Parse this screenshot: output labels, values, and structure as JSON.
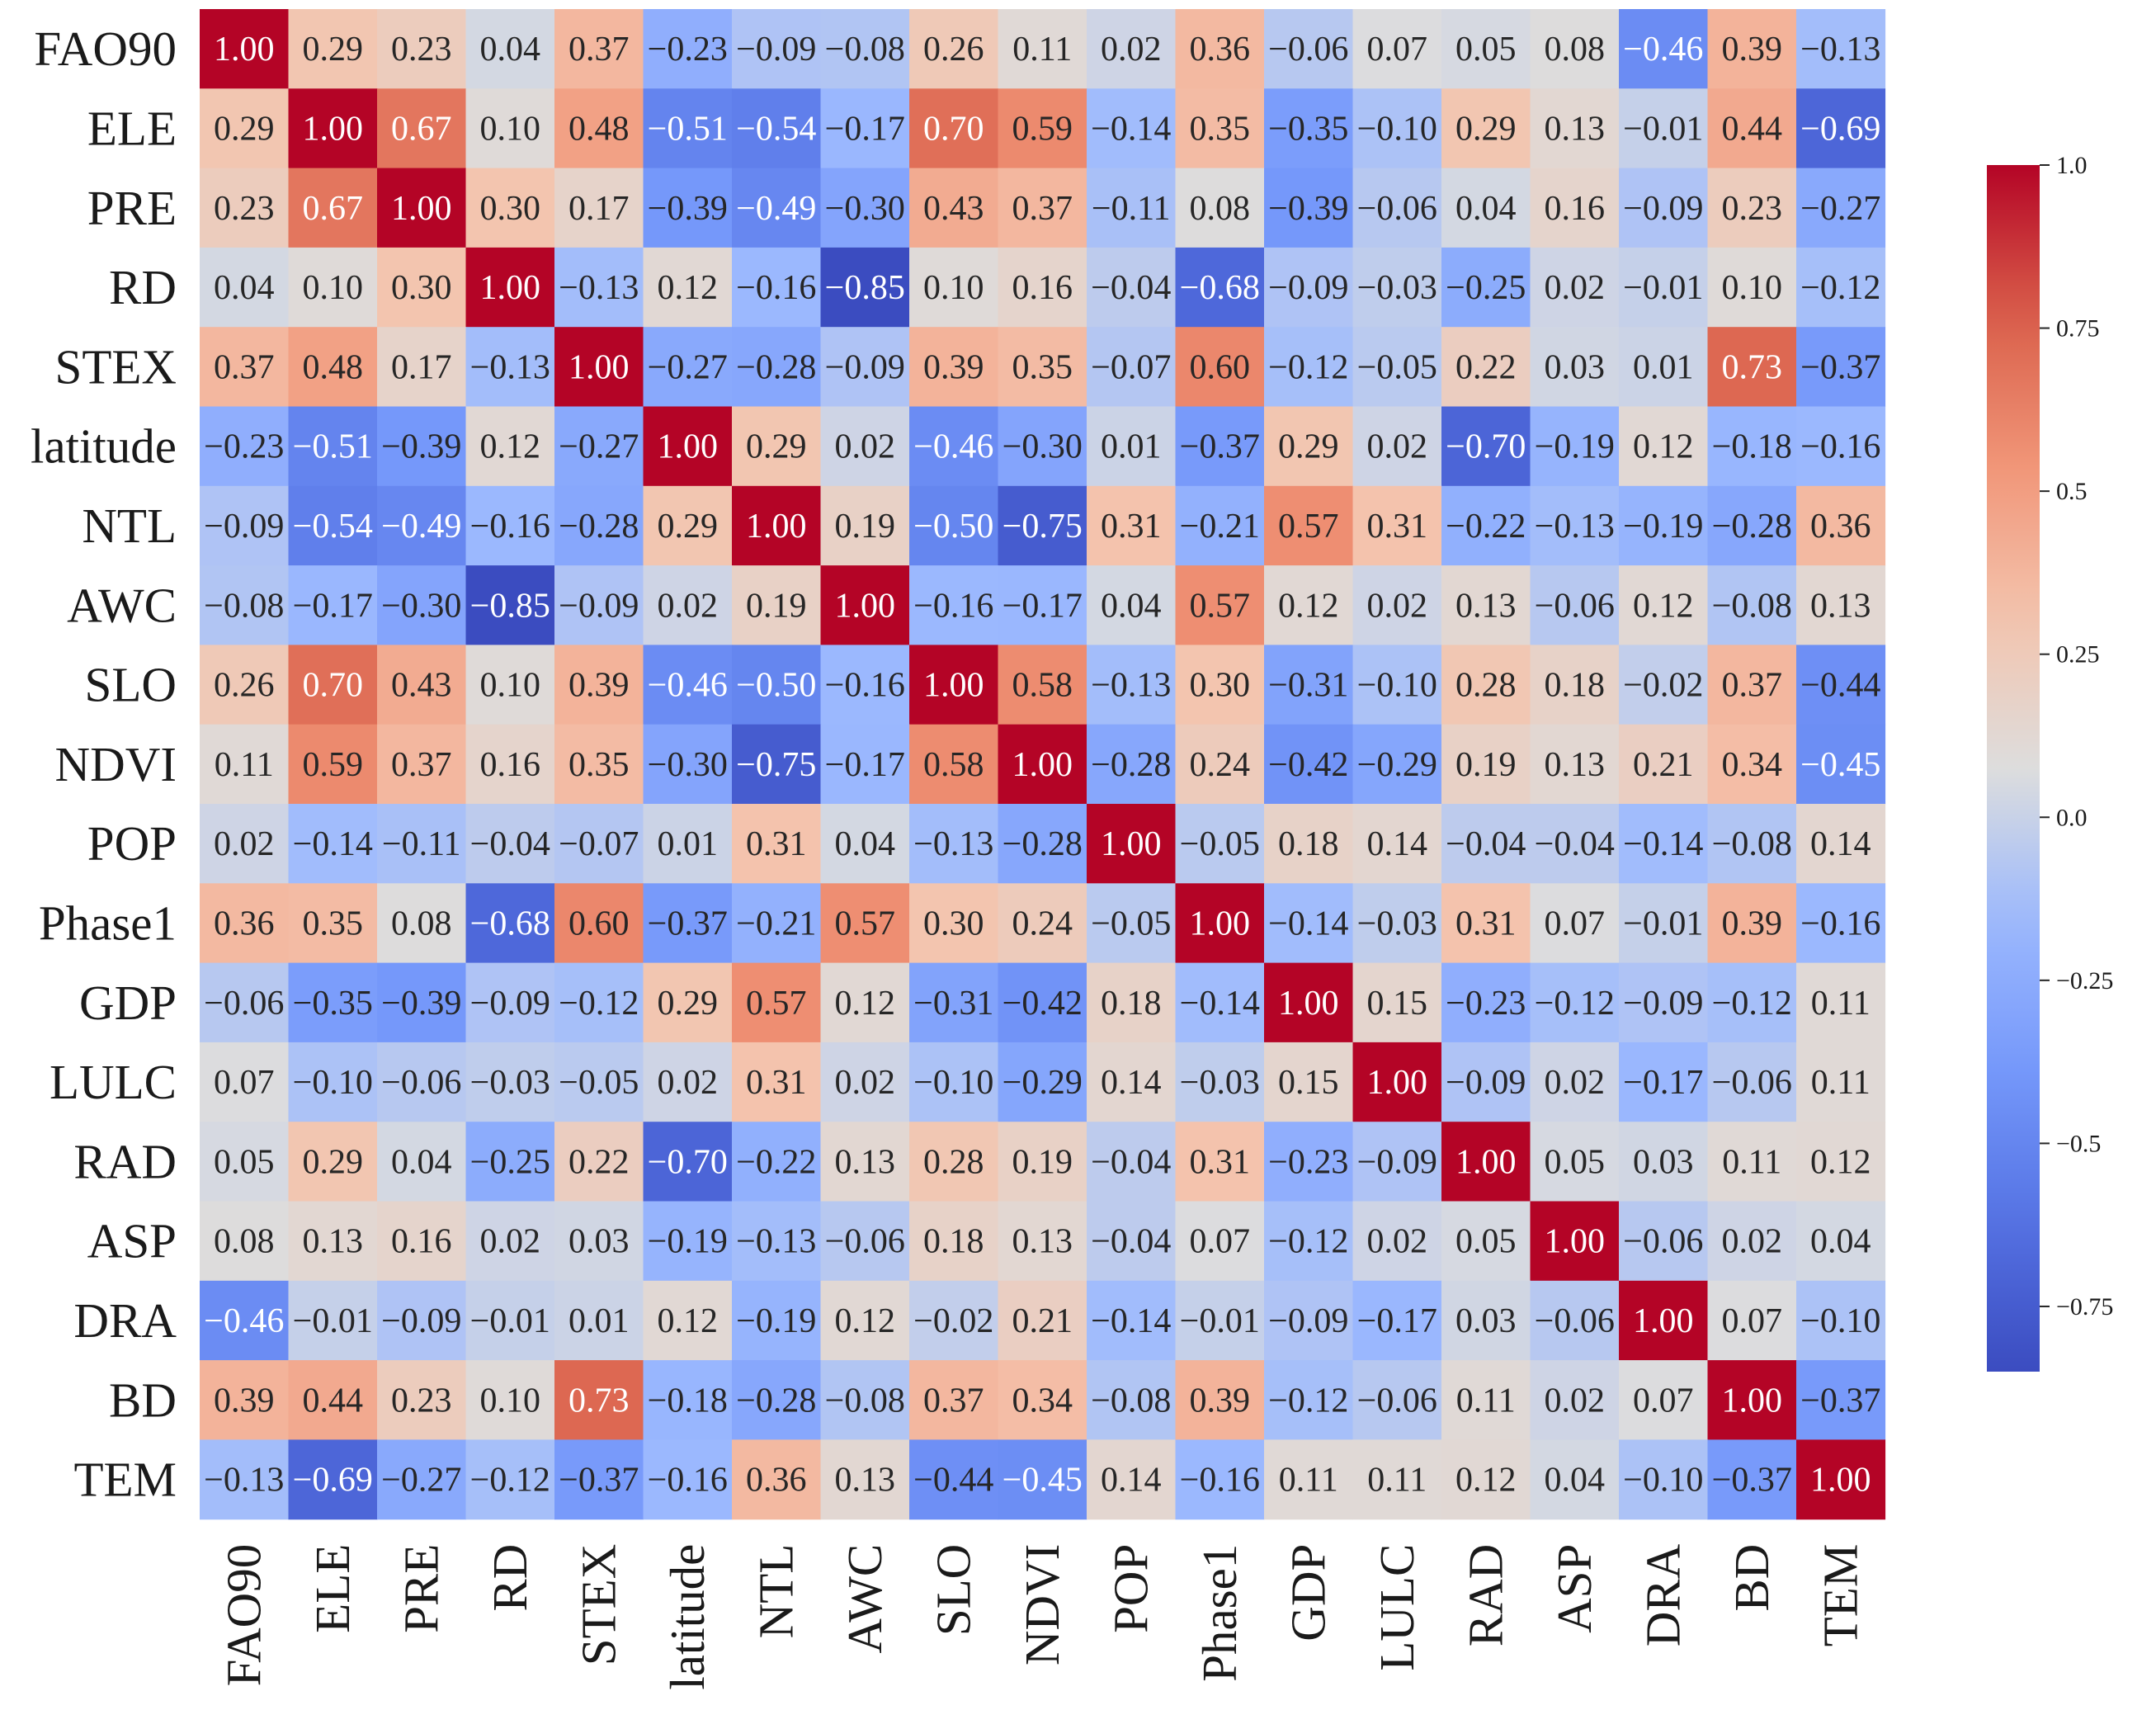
{
  "chart_data": {
    "type": "heatmap",
    "title": "",
    "xlabel": "",
    "ylabel": "",
    "labels": [
      "FAO90",
      "ELE",
      "PRE",
      "RD",
      "STEX",
      "latitude",
      "NTL",
      "AWC",
      "SLO",
      "NDVI",
      "POP",
      "Phase1",
      "GDP",
      "LULC",
      "RAD",
      "ASP",
      "DRA",
      "BD",
      "TEM"
    ],
    "matrix": [
      [
        1.0,
        0.29,
        0.23,
        0.04,
        0.37,
        -0.23,
        -0.09,
        -0.08,
        0.26,
        0.11,
        0.02,
        0.36,
        -0.06,
        0.07,
        0.05,
        0.08,
        -0.46,
        0.39,
        -0.13
      ],
      [
        0.29,
        1.0,
        0.67,
        0.1,
        0.48,
        -0.51,
        -0.54,
        -0.17,
        0.7,
        0.59,
        -0.14,
        0.35,
        -0.35,
        -0.1,
        0.29,
        0.13,
        -0.01,
        0.44,
        -0.69
      ],
      [
        0.23,
        0.67,
        1.0,
        0.3,
        0.17,
        -0.39,
        -0.49,
        -0.3,
        0.43,
        0.37,
        -0.11,
        0.08,
        -0.39,
        -0.06,
        0.04,
        0.16,
        -0.09,
        0.23,
        -0.27
      ],
      [
        0.04,
        0.1,
        0.3,
        1.0,
        -0.13,
        0.12,
        -0.16,
        -0.85,
        0.1,
        0.16,
        -0.04,
        -0.68,
        -0.09,
        -0.03,
        -0.25,
        0.02,
        -0.01,
        0.1,
        -0.12
      ],
      [
        0.37,
        0.48,
        0.17,
        -0.13,
        1.0,
        -0.27,
        -0.28,
        -0.09,
        0.39,
        0.35,
        -0.07,
        0.6,
        -0.12,
        -0.05,
        0.22,
        0.03,
        0.01,
        0.73,
        -0.37
      ],
      [
        -0.23,
        -0.51,
        -0.39,
        0.12,
        -0.27,
        1.0,
        0.29,
        0.02,
        -0.46,
        -0.3,
        0.01,
        -0.37,
        0.29,
        0.02,
        -0.7,
        -0.19,
        0.12,
        -0.18,
        -0.16
      ],
      [
        -0.09,
        -0.54,
        -0.49,
        -0.16,
        -0.28,
        0.29,
        1.0,
        0.19,
        -0.5,
        -0.75,
        0.31,
        -0.21,
        0.57,
        0.31,
        -0.22,
        -0.13,
        -0.19,
        -0.28,
        0.36
      ],
      [
        -0.08,
        -0.17,
        -0.3,
        -0.85,
        -0.09,
        0.02,
        0.19,
        1.0,
        -0.16,
        -0.17,
        0.04,
        0.57,
        0.12,
        0.02,
        0.13,
        -0.06,
        0.12,
        -0.08,
        0.13
      ],
      [
        0.26,
        0.7,
        0.43,
        0.1,
        0.39,
        -0.46,
        -0.5,
        -0.16,
        1.0,
        0.58,
        -0.13,
        0.3,
        -0.31,
        -0.1,
        0.28,
        0.18,
        -0.02,
        0.37,
        -0.44
      ],
      [
        0.11,
        0.59,
        0.37,
        0.16,
        0.35,
        -0.3,
        -0.75,
        -0.17,
        0.58,
        1.0,
        -0.28,
        0.24,
        -0.42,
        -0.29,
        0.19,
        0.13,
        0.21,
        0.34,
        -0.45
      ],
      [
        0.02,
        -0.14,
        -0.11,
        -0.04,
        -0.07,
        0.01,
        0.31,
        0.04,
        -0.13,
        -0.28,
        1.0,
        -0.05,
        0.18,
        0.14,
        -0.04,
        -0.04,
        -0.14,
        -0.08,
        0.14
      ],
      [
        0.36,
        0.35,
        0.08,
        -0.68,
        0.6,
        -0.37,
        -0.21,
        0.57,
        0.3,
        0.24,
        -0.05,
        1.0,
        -0.14,
        -0.03,
        0.31,
        0.07,
        -0.01,
        0.39,
        -0.16
      ],
      [
        -0.06,
        -0.35,
        -0.39,
        -0.09,
        -0.12,
        0.29,
        0.57,
        0.12,
        -0.31,
        -0.42,
        0.18,
        -0.14,
        1.0,
        0.15,
        -0.23,
        -0.12,
        -0.09,
        -0.12,
        0.11
      ],
      [
        0.07,
        -0.1,
        -0.06,
        -0.03,
        -0.05,
        0.02,
        0.31,
        0.02,
        -0.1,
        -0.29,
        0.14,
        -0.03,
        0.15,
        1.0,
        -0.09,
        0.02,
        -0.17,
        -0.06,
        0.11
      ],
      [
        0.05,
        0.29,
        0.04,
        -0.25,
        0.22,
        -0.7,
        -0.22,
        0.13,
        0.28,
        0.19,
        -0.04,
        0.31,
        -0.23,
        -0.09,
        1.0,
        0.05,
        0.03,
        0.11,
        0.12
      ],
      [
        0.08,
        0.13,
        0.16,
        0.02,
        0.03,
        -0.19,
        -0.13,
        -0.06,
        0.18,
        0.13,
        -0.04,
        0.07,
        -0.12,
        0.02,
        0.05,
        1.0,
        -0.06,
        0.02,
        0.04
      ],
      [
        -0.46,
        -0.01,
        -0.09,
        -0.01,
        0.01,
        0.12,
        -0.19,
        0.12,
        -0.02,
        0.21,
        -0.14,
        -0.01,
        -0.09,
        -0.17,
        0.03,
        -0.06,
        1.0,
        0.07,
        -0.1
      ],
      [
        0.39,
        0.44,
        0.23,
        0.1,
        0.73,
        -0.18,
        -0.28,
        -0.08,
        0.37,
        0.34,
        -0.08,
        0.39,
        -0.12,
        -0.06,
        0.11,
        0.02,
        0.07,
        1.0,
        -0.37
      ],
      [
        -0.13,
        -0.69,
        -0.27,
        -0.12,
        -0.37,
        -0.16,
        0.36,
        0.13,
        -0.44,
        -0.45,
        0.14,
        -0.16,
        0.11,
        0.11,
        0.12,
        0.04,
        -0.1,
        -0.37,
        1.0
      ]
    ],
    "value_range": [
      -0.85,
      1.0
    ],
    "colormap": "coolwarm",
    "colorbar": {
      "placement": "right",
      "ticks": [
        1.0,
        0.75,
        0.5,
        0.25,
        0.0,
        -0.25,
        -0.5,
        -0.75
      ],
      "tick_labels": [
        "1.0",
        "0.75",
        "0.5",
        "0.25",
        "0.0",
        "−0.25",
        "−0.5",
        "−0.75"
      ]
    },
    "grid": false,
    "legend": "none"
  }
}
